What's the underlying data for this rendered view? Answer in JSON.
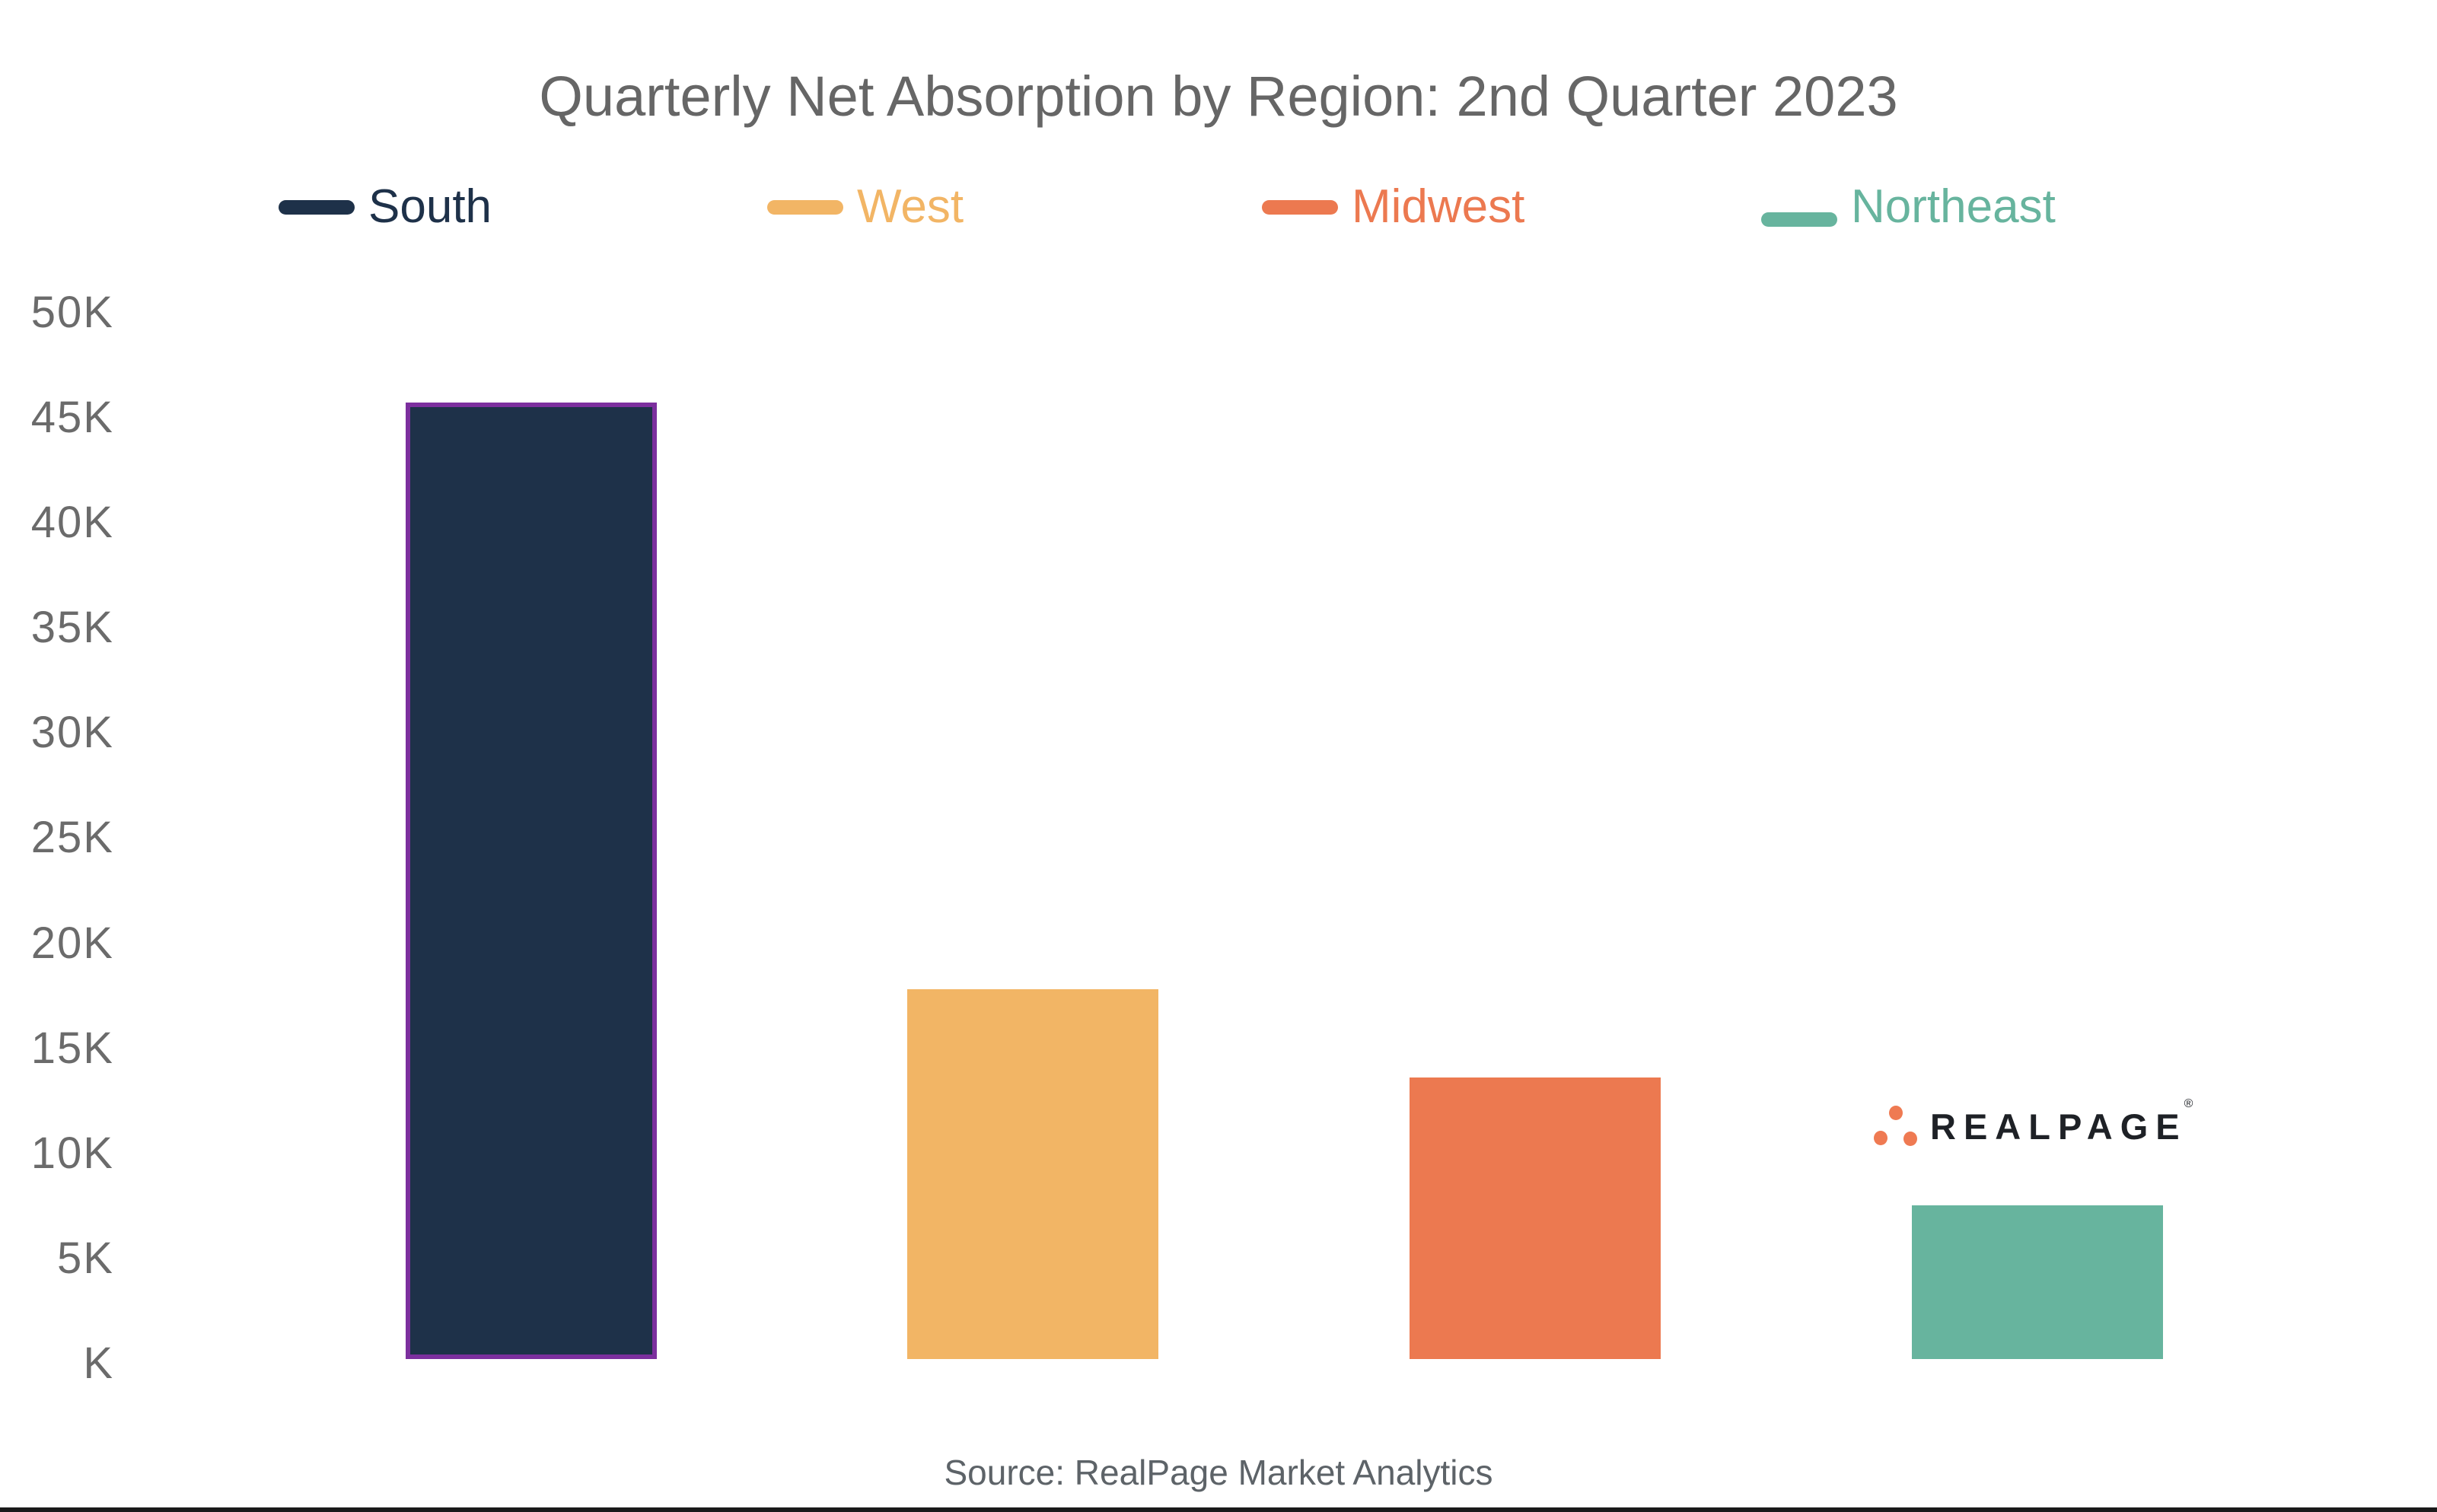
{
  "page": {
    "background": "#FFFFFF",
    "bottom_rule_color": "#1A1A1A"
  },
  "title": {
    "text": "Quarterly Net Absorption by Region: 2nd Quarter 2023",
    "color": "#666666"
  },
  "source": {
    "text": "Source: RealPage Market Analytics",
    "color": "#5D6368"
  },
  "logo": {
    "wordmark": "REALPAGE",
    "registered_mark": "®",
    "wordmark_color": "#1E2126",
    "dot_color": "#EF7A52"
  },
  "axis": {
    "tick_color": "#6B6B6B"
  },
  "chart_data": {
    "type": "bar",
    "title": "Quarterly Net Absorption by Region: 2nd Quarter 2023",
    "categories": [
      "South",
      "West",
      "Midwest",
      "Northeast"
    ],
    "values": [
      45500,
      17600,
      13400,
      7300
    ],
    "series": [
      {
        "name": "South",
        "value": 45500,
        "color": "#1E3149",
        "highlighted": true,
        "highlight_border_color": "#7C2F9E"
      },
      {
        "name": "West",
        "value": 17600,
        "color": "#F2B565",
        "highlighted": false
      },
      {
        "name": "Midwest",
        "value": 13400,
        "color": "#EC7950",
        "highlighted": false
      },
      {
        "name": "Northeast",
        "value": 7300,
        "color": "#67B49E",
        "highlighted": false
      }
    ],
    "xlabel": "",
    "ylabel": "",
    "ylim": [
      0,
      50000
    ],
    "yticks": [
      {
        "label": "50K",
        "value": 50000
      },
      {
        "label": "45K",
        "value": 45000
      },
      {
        "label": "40K",
        "value": 40000
      },
      {
        "label": "35K",
        "value": 35000
      },
      {
        "label": "30K",
        "value": 30000
      },
      {
        "label": "25K",
        "value": 25000
      },
      {
        "label": "20K",
        "value": 20000
      },
      {
        "label": "15K",
        "value": 15000
      },
      {
        "label": "10K",
        "value": 10000
      },
      {
        "label": "5K",
        "value": 5000
      },
      {
        "label": "K",
        "value": 0
      }
    ],
    "grid": false,
    "legend_position": "top"
  }
}
